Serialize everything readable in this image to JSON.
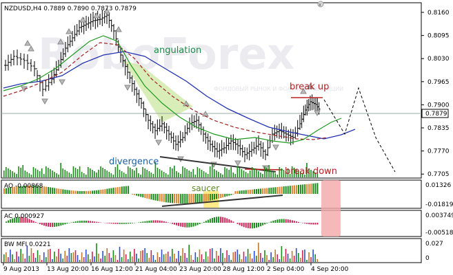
{
  "symbol_header": "NZDUSD,H4  0.7889 0.7890 0.7873 0.7879",
  "watermark": "RoboForex",
  "watermark_sub": "ФОНДОВЫЙ РЫНОК И ФОРЕКС-ИНВЕСТИЦИИ",
  "price_axis": [
    "0.8160",
    "0.8095",
    "0.8030",
    "0.7965",
    "0.7900",
    "0.7835",
    "0.7770",
    "0.7705"
  ],
  "current_price": "0.7879",
  "annotations": {
    "angulation": "angulation",
    "break_up": "break up",
    "divergence": "divergence",
    "break_down": "break down",
    "saucer": "saucer"
  },
  "ao_panel": {
    "label": "AO -0.00868",
    "axis": [
      "0.01326",
      "-0.01819"
    ]
  },
  "ac_panel": {
    "label": "AC 0.000927",
    "axis": [
      "0.003749",
      "-0.00518"
    ]
  },
  "mfi_panel": {
    "label": "BW MFI 0.0221",
    "axis": [
      "0.027",
      "0"
    ]
  },
  "time_axis": [
    "9 Aug 2013",
    "13 Aug 20:00",
    "16 Aug 12:00",
    "21 Aug 04:00",
    "23 Aug 20:00",
    "28 Aug 12:00",
    "2 Sep 04:00",
    "4 Sep 20:00"
  ],
  "colors": {
    "ao_up": "#1a8a1a",
    "ao_down": "#d9822b",
    "ac_down": "#cc2255",
    "alligator_jaw": "#1f2fb0",
    "alligator_teeth": "#a02020",
    "alligator_lips": "#1c9a1c",
    "highlight_green": "#cfe8a6",
    "highlight_pink": "#f4a7a7",
    "highlight_yellow": "#ffe66a"
  }
}
